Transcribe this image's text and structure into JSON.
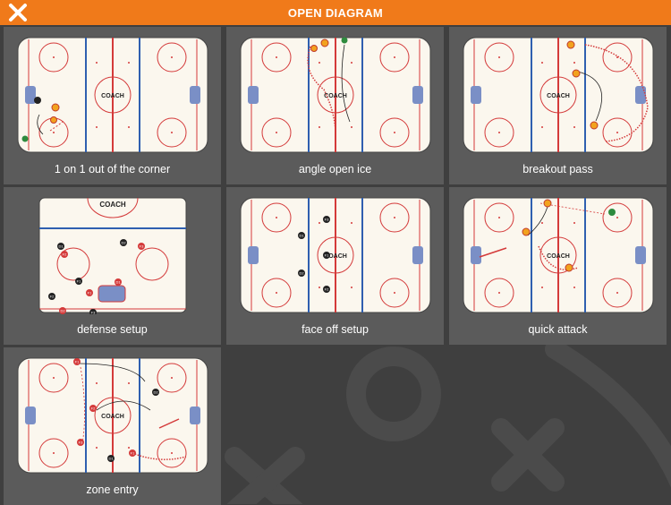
{
  "header": {
    "title": "OPEN DIAGRAM",
    "close_icon": "close-x-icon"
  },
  "colors": {
    "accent": "#f07a1a",
    "background": "#3f3f3f",
    "card": "#5b5b5b",
    "ice": "#fbf7ee",
    "rink_red": "#d43a3a",
    "rink_blue": "#2f5fb0"
  },
  "brand": {
    "logo_text": "COACH"
  },
  "diagrams": [
    {
      "id": "d1",
      "caption": "1 on 1 out of the corner",
      "kind": "full",
      "labels": []
    },
    {
      "id": "d2",
      "caption": "angle open ice",
      "kind": "full",
      "labels": []
    },
    {
      "id": "d3",
      "caption": "breakout pass",
      "kind": "full",
      "labels": []
    },
    {
      "id": "d4",
      "caption": "defense setup",
      "kind": "half",
      "labels": [
        "D1",
        "D2",
        "F1",
        "F2",
        "F3",
        "D1",
        "D2",
        "F2",
        "F3",
        "D2",
        "F1"
      ]
    },
    {
      "id": "d5",
      "caption": "face off setup",
      "kind": "full",
      "labels": [
        "F3",
        "D1",
        "F1",
        "D2",
        "F2"
      ]
    },
    {
      "id": "d6",
      "caption": "quick attack",
      "kind": "full",
      "labels": []
    },
    {
      "id": "d7",
      "caption": "zone entry",
      "kind": "full",
      "labels": [
        "F1",
        "F2",
        "D1",
        "F3",
        "D2",
        "F1",
        "F2"
      ]
    }
  ]
}
